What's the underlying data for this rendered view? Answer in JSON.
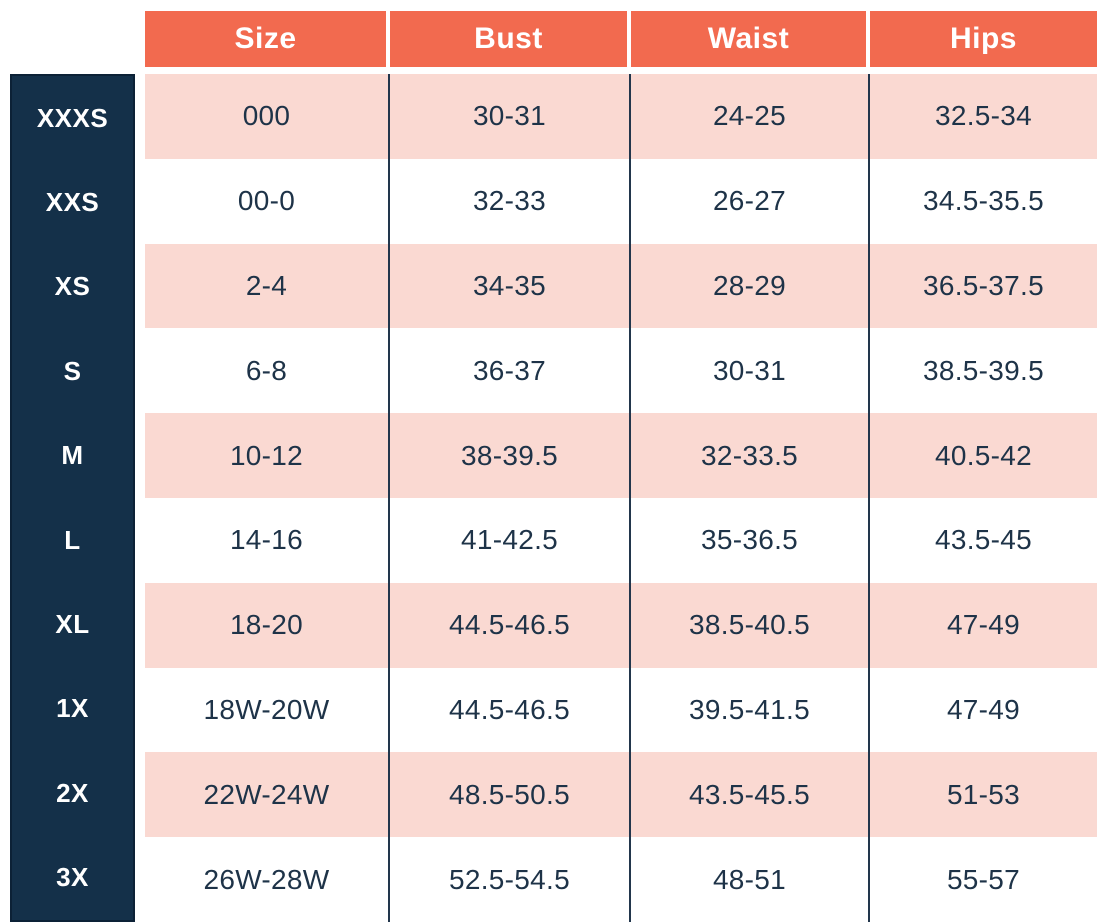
{
  "chart_data": {
    "type": "table",
    "columns": [
      "Size",
      "Bust",
      "Waist",
      "Hips"
    ],
    "row_labels": [
      "XXXS",
      "XXS",
      "XS",
      "S",
      "M",
      "L",
      "XL",
      "1X",
      "2X",
      "3X"
    ],
    "rows": [
      [
        "000",
        "30-31",
        "24-25",
        "32.5-34"
      ],
      [
        "00-0",
        "32-33",
        "26-27",
        "34.5-35.5"
      ],
      [
        "2-4",
        "34-35",
        "28-29",
        "36.5-37.5"
      ],
      [
        "6-8",
        "36-37",
        "30-31",
        "38.5-39.5"
      ],
      [
        "10-12",
        "38-39.5",
        "32-33.5",
        "40.5-42"
      ],
      [
        "14-16",
        "41-42.5",
        "35-36.5",
        "43.5-45"
      ],
      [
        "18-20",
        "44.5-46.5",
        "38.5-40.5",
        "47-49"
      ],
      [
        "18W-20W",
        "44.5-46.5",
        "39.5-41.5",
        "47-49"
      ],
      [
        "22W-24W",
        "48.5-50.5",
        "43.5-45.5",
        "51-53"
      ],
      [
        "26W-28W",
        "52.5-54.5",
        "48-51",
        "55-57"
      ]
    ],
    "layout": {
      "striped": true,
      "stripe_pattern": "first data row pink, then alternating pink/white",
      "header_position": "top",
      "label_column_position": "left"
    }
  },
  "colors": {
    "header_bg": "#F26A4F",
    "header_text": "#FFFFFF",
    "stripe_bg": "#FAD9D2",
    "row_bg": "#FFFFFF",
    "label_column_bg": "#143049",
    "label_column_border": "#0C2136",
    "label_text": "#FFFFFF",
    "cell_text": "#1E3348",
    "grid_line": "#22364C"
  }
}
